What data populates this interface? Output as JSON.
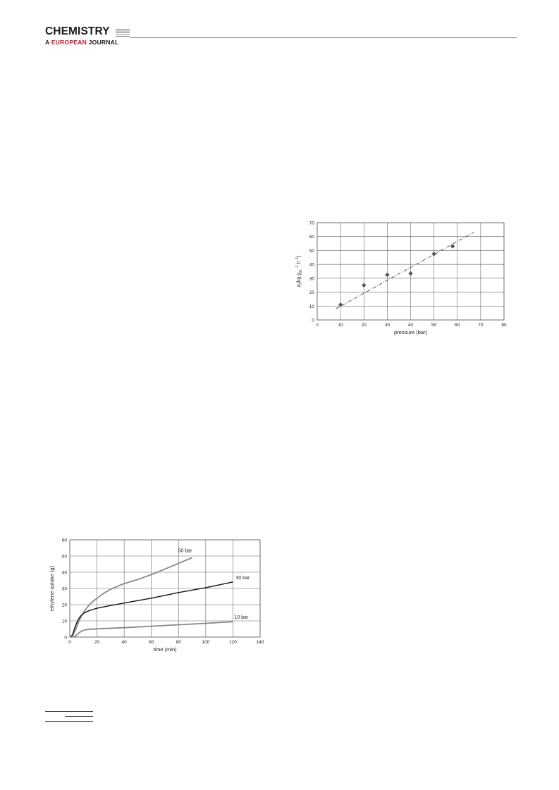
{
  "header": {
    "journal_title": "CHEMISTRY",
    "journal_subtitle_prefix": "A ",
    "journal_subtitle_accent": "EUROPEAN",
    "journal_subtitle_suffix": " JOURNAL"
  },
  "chart_data": [
    {
      "type": "scatter",
      "xlabel": "pressure (bar)",
      "ylabel": "a",
      "ylabel_sub": "i",
      "ylabel_unit": "(kg g",
      "ylabel_unit_sub": "Zr",
      "ylabel_unit_sup": "−1",
      "ylabel_unit_h": " h",
      "ylabel_unit_h_sup": "−1",
      "ylabel_close": ")",
      "xlim": [
        0,
        80
      ],
      "ylim": [
        0,
        70
      ],
      "xticks": [
        0,
        10,
        20,
        30,
        40,
        50,
        60,
        70,
        80
      ],
      "yticks": [
        0,
        10,
        20,
        30,
        40,
        50,
        60,
        70
      ],
      "grid": true,
      "points": [
        {
          "x": 10,
          "y": 11
        },
        {
          "x": 20,
          "y": 25
        },
        {
          "x": 30,
          "y": 32.5
        },
        {
          "x": 40,
          "y": 33.5
        },
        {
          "x": 50,
          "y": 47.5
        },
        {
          "x": 58,
          "y": 53
        }
      ],
      "trendline": {
        "x": [
          8,
          67
        ],
        "y": [
          8,
          63
        ],
        "style": "dash-dot"
      }
    },
    {
      "type": "line",
      "xlabel": "time (min)",
      "ylabel": "ethylene uptake (g)",
      "xlim": [
        0,
        140
      ],
      "ylim": [
        0,
        60
      ],
      "xticks": [
        0,
        20,
        40,
        60,
        80,
        100,
        120,
        140
      ],
      "yticks": [
        0,
        10,
        20,
        30,
        40,
        50,
        60
      ],
      "grid": true,
      "series": [
        {
          "name": "50 bar",
          "color": "#888888",
          "x": [
            0,
            2,
            4,
            6,
            8,
            10,
            12,
            15,
            20,
            25,
            30,
            40,
            50,
            60,
            70,
            80,
            90
          ],
          "y": [
            0,
            1,
            4,
            8.5,
            12,
            15,
            17.5,
            20.5,
            24,
            27,
            29.5,
            33,
            35.5,
            38.5,
            42,
            45.5,
            49
          ]
        },
        {
          "name": "30 bar",
          "color": "#111111",
          "x": [
            0,
            1,
            2,
            3,
            4,
            6,
            8,
            10,
            12,
            15,
            20,
            30,
            40,
            60,
            80,
            100,
            120
          ],
          "y": [
            0,
            0.3,
            1.5,
            4,
            6.5,
            10.5,
            13,
            14.5,
            15.5,
            16.5,
            17.8,
            19.5,
            21,
            24,
            27.5,
            30.5,
            34
          ]
        },
        {
          "name": "10 bar",
          "color": "#888888",
          "x": [
            0,
            3,
            5,
            7,
            9,
            11,
            14,
            20,
            40,
            60,
            80,
            100,
            120
          ],
          "y": [
            0,
            0.2,
            1.2,
            2.8,
            3.8,
            4.4,
            4.8,
            5.1,
            5.8,
            6.7,
            7.6,
            8.5,
            9.5
          ]
        }
      ]
    }
  ]
}
